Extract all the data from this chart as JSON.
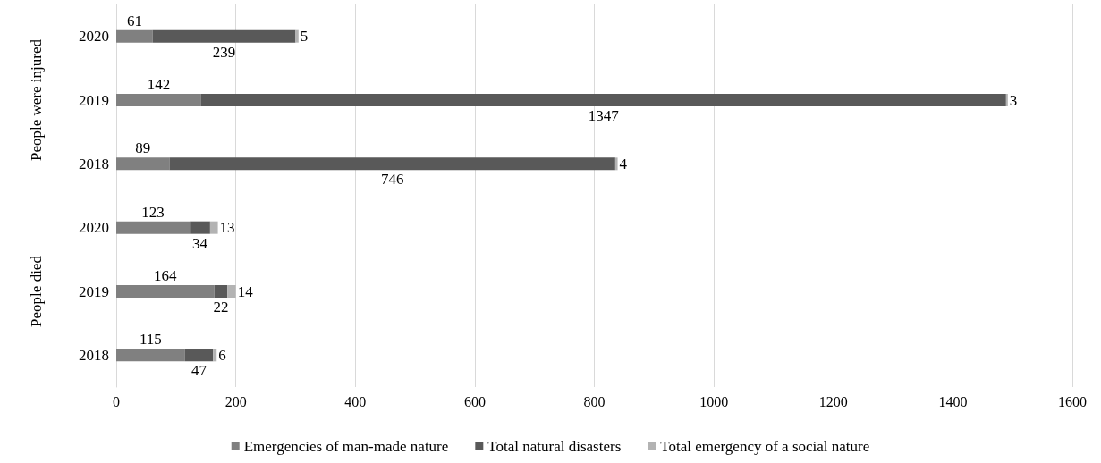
{
  "chart_data": {
    "type": "bar",
    "orientation": "horizontal",
    "stacked": true,
    "data_labels": true,
    "grid": "x",
    "legend": "bottom",
    "categories": [
      "2020",
      "2019",
      "2018",
      "2020",
      "2019",
      "2018"
    ],
    "series": [
      {
        "name": "Emergencies of man-made nature",
        "color": "#808080",
        "values": [
          61,
          142,
          89,
          123,
          164,
          115
        ]
      },
      {
        "name": "Total natural disasters",
        "color": "#595959",
        "values": [
          239,
          1347,
          746,
          34,
          22,
          47
        ]
      },
      {
        "name": "Total emergency of a social nature",
        "color": "#b3b3b3",
        "values": [
          5,
          3,
          4,
          13,
          14,
          6
        ]
      }
    ],
    "xlim": [
      0,
      1600
    ],
    "xticks": [
      0,
      200,
      400,
      600,
      800,
      1000,
      1200,
      1400,
      1600
    ],
    "annotations": [
      "People were injured",
      "People died"
    ]
  }
}
